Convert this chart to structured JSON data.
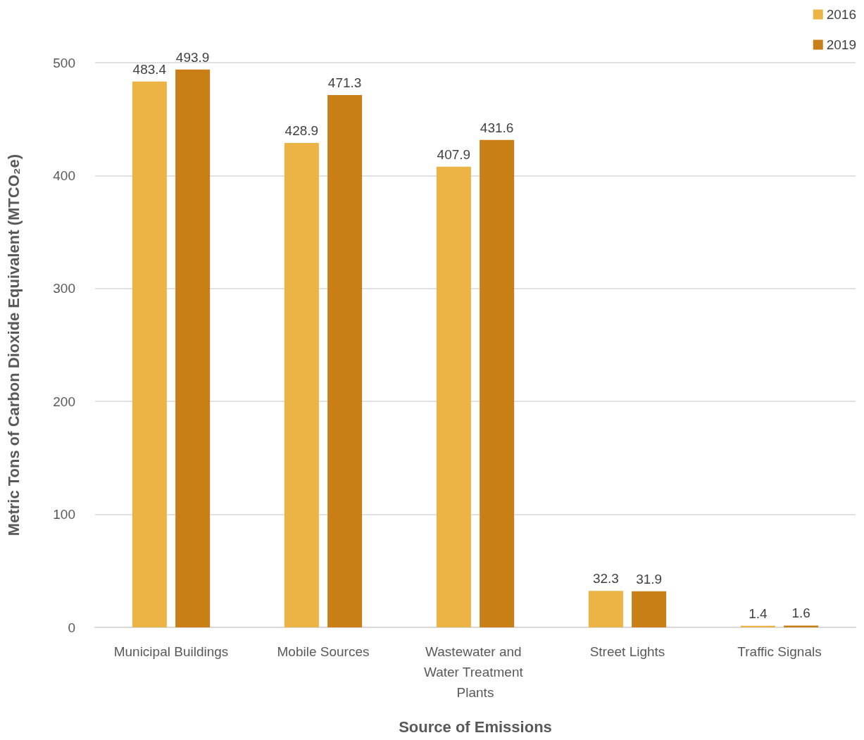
{
  "chart_data": {
    "type": "bar",
    "categories": [
      "Municipal Buildings",
      "Mobile Sources",
      "Wastewater and Water Treatment Plants",
      "Street Lights",
      "Traffic Signals"
    ],
    "series": [
      {
        "name": "2016",
        "color": "#ebb444",
        "values": [
          483.4,
          428.9,
          407.9,
          32.3,
          1.4
        ]
      },
      {
        "name": "2019",
        "color": "#c97f15",
        "values": [
          493.9,
          471.3,
          431.6,
          31.9,
          1.6
        ]
      }
    ],
    "xlabel": "Source of Emissions",
    "ylabel": "Metric Tons of Carbon Dioxide Equivalent (MTCO₂e)",
    "ylim": [
      0,
      500
    ],
    "yticks": [
      0,
      100,
      200,
      300,
      400,
      500
    ],
    "grid": "y",
    "legend": "top right",
    "data_labels": true
  }
}
